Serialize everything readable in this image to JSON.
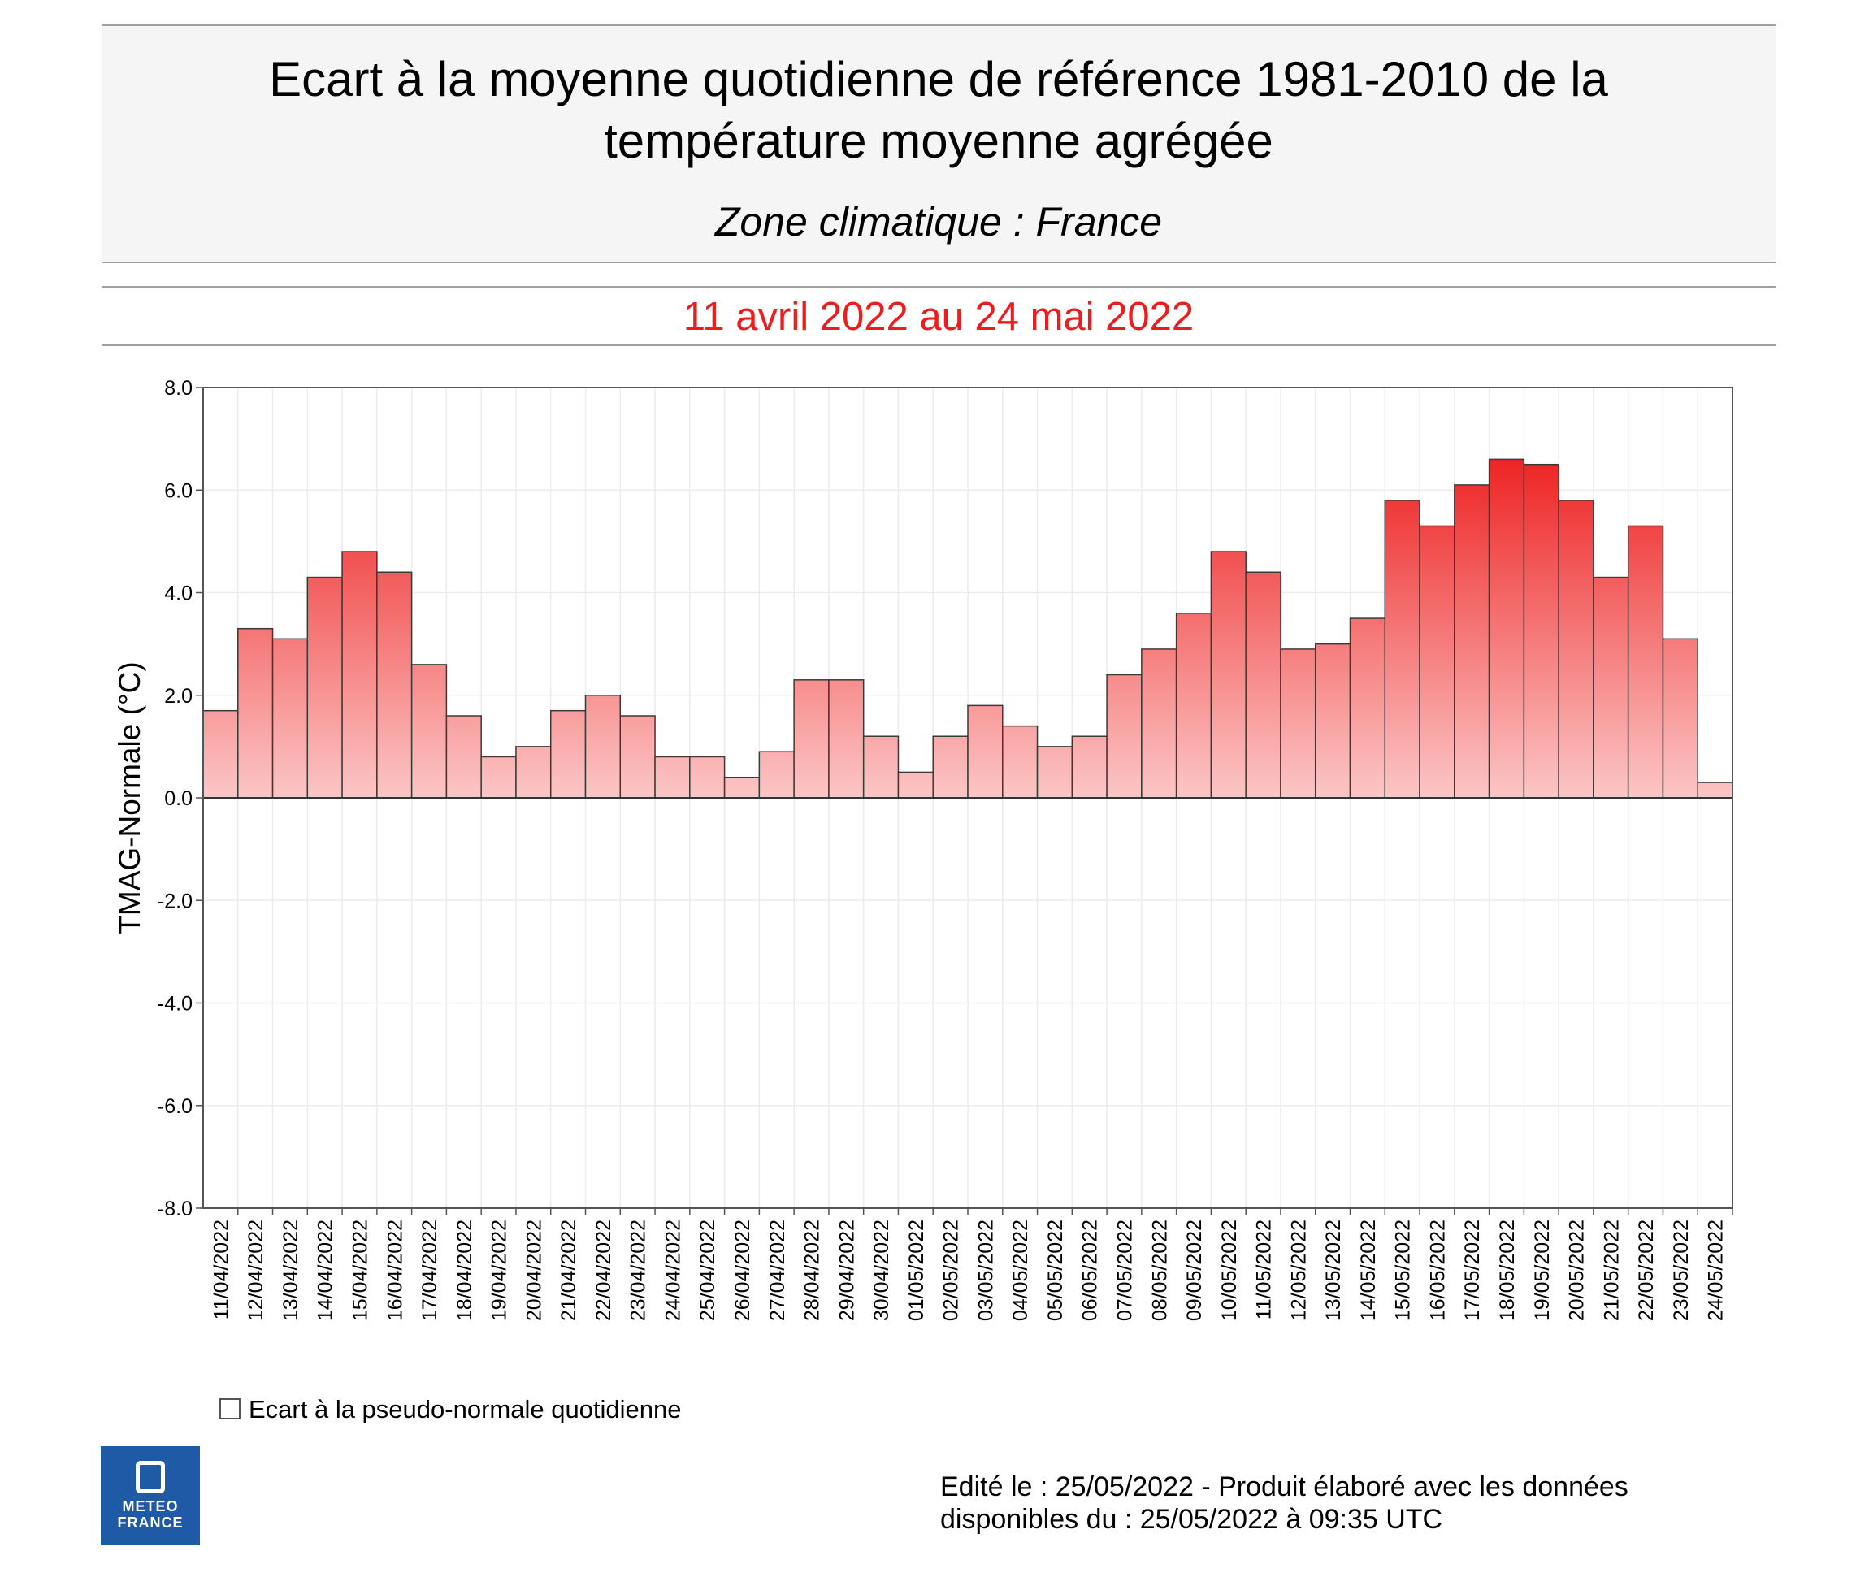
{
  "header": {
    "title_line1": "Ecart à la moyenne quotidienne de référence 1981-2010 de la",
    "title_line2": "température moyenne  agrégée",
    "subtitle": "Zone climatique : France",
    "period": "11 avril 2022 au 24 mai 2022"
  },
  "colors": {
    "period_text": "#ee1c1c",
    "bar_top": "#ee2424",
    "bar_bottom": "#fcc6c6",
    "bar_stroke": "#3a3a3a",
    "logo_bg": "#1f5aa6"
  },
  "chart_data": {
    "type": "bar",
    "title": "",
    "ylabel": "TMAG-Normale (°C)",
    "xlabel": "",
    "ylim": [
      -8.0,
      8.0
    ],
    "yticks": [
      "8.0",
      "6.0",
      "4.0",
      "2.0",
      "0.0",
      "-2.0",
      "-4.0",
      "-6.0",
      "-8.0"
    ],
    "grid": true,
    "categories": [
      "11/04/2022",
      "12/04/2022",
      "13/04/2022",
      "14/04/2022",
      "15/04/2022",
      "16/04/2022",
      "17/04/2022",
      "18/04/2022",
      "19/04/2022",
      "20/04/2022",
      "21/04/2022",
      "22/04/2022",
      "23/04/2022",
      "24/04/2022",
      "25/04/2022",
      "26/04/2022",
      "27/04/2022",
      "28/04/2022",
      "29/04/2022",
      "30/04/2022",
      "01/05/2022",
      "02/05/2022",
      "03/05/2022",
      "04/05/2022",
      "05/05/2022",
      "06/05/2022",
      "07/05/2022",
      "08/05/2022",
      "09/05/2022",
      "10/05/2022",
      "11/05/2022",
      "12/05/2022",
      "13/05/2022",
      "14/05/2022",
      "15/05/2022",
      "16/05/2022",
      "17/05/2022",
      "18/05/2022",
      "19/05/2022",
      "20/05/2022",
      "21/05/2022",
      "22/05/2022",
      "23/05/2022",
      "24/05/2022"
    ],
    "values": [
      1.7,
      3.3,
      3.1,
      4.3,
      4.8,
      4.4,
      2.6,
      1.6,
      0.8,
      1.0,
      1.7,
      2.0,
      1.6,
      0.8,
      0.8,
      0.4,
      0.9,
      2.3,
      2.3,
      1.2,
      0.5,
      1.2,
      1.8,
      1.4,
      1.0,
      1.2,
      2.4,
      2.9,
      3.6,
      4.8,
      4.4,
      2.9,
      3.0,
      3.5,
      5.8,
      5.3,
      6.1,
      6.6,
      6.5,
      5.8,
      4.3,
      5.3,
      3.1,
      0.3
    ],
    "legend": "Ecart à la pseudo-normale quotidienne",
    "legend_position": "bottom-left"
  },
  "logo": {
    "line1": "METEO",
    "line2": "FRANCE"
  },
  "footer": {
    "line1": "Edité le : 25/05/2022 - Produit élaboré avec les données",
    "line2": "disponibles du : 25/05/2022 à 09:35 UTC"
  }
}
